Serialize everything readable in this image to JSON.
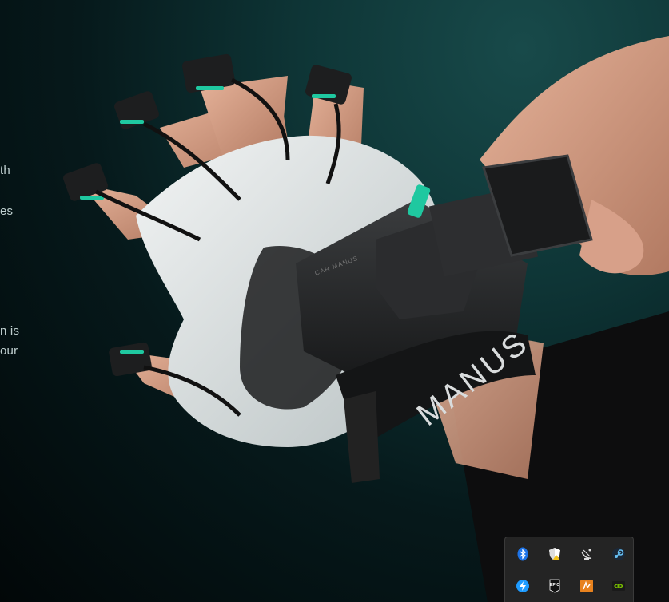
{
  "side_text": [
    "th",
    "es",
    "n is",
    "our"
  ],
  "image": {
    "brand_text": "MANUS",
    "small_print": "CAR MANUS",
    "alt": "Hand wearing a white and black motion-capture glove with a tracker module on the wrist"
  },
  "tray": {
    "icons": [
      {
        "name": "bluetooth-icon",
        "color": "#1e90ff"
      },
      {
        "name": "security-shield-icon",
        "color": "#ffffff"
      },
      {
        "name": "satellite-dish-icon",
        "color": "#cccccc"
      },
      {
        "name": "steam-icon",
        "color": "#66c0f4"
      },
      {
        "name": "lightning-app-icon",
        "color": "#1ea0ff"
      },
      {
        "name": "epic-games-icon",
        "label": "EPIC",
        "color": "#ffffff"
      },
      {
        "name": "sound-app-icon",
        "color": "#e8821e"
      },
      {
        "name": "nvidia-icon",
        "color": "#76b900"
      }
    ]
  }
}
